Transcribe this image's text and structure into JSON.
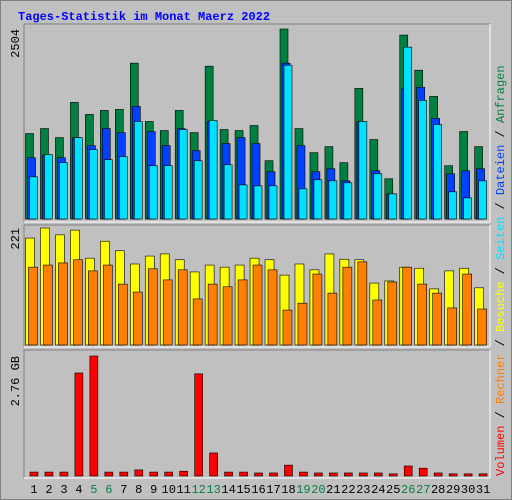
{
  "chart_data": [
    {
      "type": "bar",
      "title": "Tages-Statistik im Monat Maerz 2022",
      "ylim": [
        0,
        2504
      ],
      "yticks": [
        2504
      ],
      "series": [
        {
          "name": "Anfragen",
          "color": "#008040",
          "values": [
            1126,
            1192,
            1073,
            1537,
            1378,
            1431,
            1444,
            2054,
            1285,
            1166,
            1431,
            1139,
            2014,
            1179,
            1166,
            1232,
            768,
            2504,
            1192,
            874,
            954,
            742,
            1722,
            1047,
            530,
            2424,
            1961,
            1616,
            702,
            1153,
            954
          ]
        },
        {
          "name": "Dateien",
          "color": "#0040ff",
          "values": [
            808,
            835,
            808,
            1073,
            967,
            1192,
            1139,
            1484,
            1153,
            967,
            1192,
            901,
            1285,
            994,
            1073,
            994,
            623,
            2054,
            967,
            623,
            662,
            503,
            1285,
            636,
            331,
            1722,
            1736,
            1325,
            596,
            636,
            662
          ]
        },
        {
          "name": "Seiten",
          "color": "#00e0ff",
          "values": [
            556,
            848,
            742,
            1073,
            914,
            782,
            821,
            1285,
            702,
            702,
            1179,
            768,
            1298,
            715,
            450,
            437,
            437,
            2027,
            397,
            517,
            503,
            477,
            1285,
            596,
            331,
            2265,
            1563,
            1245,
            358,
            278,
            503
          ]
        }
      ]
    },
    {
      "type": "bar",
      "ylim": [
        0,
        221
      ],
      "yticks": [
        221
      ],
      "series": [
        {
          "name": "Besuche",
          "color": "#ffff00",
          "values": [
            202,
            221,
            208,
            217,
            164,
            196,
            178,
            153,
            168,
            172,
            161,
            138,
            151,
            147,
            151,
            164,
            161,
            132,
            153,
            142,
            172,
            162,
            161,
            117,
            121,
            147,
            145,
            106,
            140,
            145,
            108
          ]
        },
        {
          "name": "Rechner",
          "color": "#ff8000",
          "values": [
            147,
            151,
            155,
            161,
            140,
            151,
            115,
            100,
            144,
            123,
            142,
            87,
            115,
            110,
            123,
            151,
            142,
            66,
            79,
            134,
            98,
            147,
            157,
            85,
            119,
            147,
            115,
            98,
            70,
            134,
            68
          ]
        }
      ]
    },
    {
      "type": "bar",
      "ylim": [
        0,
        2.76
      ],
      "yticks": [
        {
          "value": 2.76,
          "label": "2.76 GB"
        }
      ],
      "categories": [
        "1",
        "2",
        "3",
        "4",
        "5",
        "6",
        "7",
        "8",
        "9",
        "10",
        "11",
        "12",
        "13",
        "14",
        "15",
        "16",
        "17",
        "18",
        "19",
        "20",
        "21",
        "22",
        "23",
        "24",
        "25",
        "26",
        "27",
        "28",
        "29",
        "30",
        "31"
      ],
      "category_colors": [
        "#000000",
        "#000000",
        "#000000",
        "#000000",
        "#008040",
        "#008040",
        "#000000",
        "#000000",
        "#000000",
        "#000000",
        "#000000",
        "#008040",
        "#008040",
        "#000000",
        "#000000",
        "#000000",
        "#000000",
        "#000000",
        "#008040",
        "#008040",
        "#000000",
        "#000000",
        "#000000",
        "#000000",
        "#000000",
        "#008040",
        "#008040",
        "#000000",
        "#000000",
        "#000000",
        "#000000"
      ],
      "legend_separator": "/",
      "series": [
        {
          "name": "Volumen",
          "color": "#ff0000",
          "values": [
            0.09,
            0.09,
            0.09,
            2.37,
            2.76,
            0.09,
            0.09,
            0.14,
            0.09,
            0.09,
            0.11,
            2.35,
            0.53,
            0.09,
            0.09,
            0.07,
            0.07,
            0.25,
            0.09,
            0.07,
            0.07,
            0.07,
            0.07,
            0.07,
            0.05,
            0.23,
            0.18,
            0.07,
            0.05,
            0.05,
            0.05
          ]
        }
      ]
    }
  ]
}
